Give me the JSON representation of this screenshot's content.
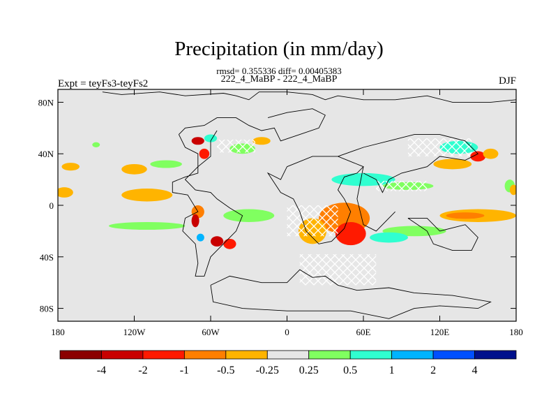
{
  "chart_data": {
    "type": "heatmap",
    "title": "Precipitation (in mm/day)",
    "stats_line": "rmsd= 0.355336 diff= 0.00405383",
    "case_line": "222_4_MaBP - 222_4_MaBP",
    "left_label": "Expt = teyFs3-teyFs2",
    "right_label": "DJF",
    "xlim": [
      -180,
      180
    ],
    "ylim": [
      -90,
      90
    ],
    "x_ticks": [
      {
        "value": -180,
        "label": "180"
      },
      {
        "value": -120,
        "label": "120W"
      },
      {
        "value": -60,
        "label": "60W"
      },
      {
        "value": 0,
        "label": "0"
      },
      {
        "value": 60,
        "label": "60E"
      },
      {
        "value": 120,
        "label": "120E"
      },
      {
        "value": 180,
        "label": "180"
      }
    ],
    "y_ticks": [
      {
        "value": 80,
        "label": "80N"
      },
      {
        "value": 40,
        "label": "40N"
      },
      {
        "value": 0,
        "label": "0"
      },
      {
        "value": -40,
        "label": "40S"
      },
      {
        "value": -80,
        "label": "80S"
      }
    ],
    "colorbar": {
      "colors": [
        "#8b0000",
        "#c90000",
        "#ff1a00",
        "#ff7f00",
        "#ffb400",
        "#e6e6e6",
        "#80ff60",
        "#30ffd0",
        "#00b4ff",
        "#0050ff",
        "#00108c"
      ],
      "labels": [
        "-4",
        "-2",
        "-1",
        "-0.5",
        "-0.25",
        "0.25",
        "0.5",
        "1",
        "2",
        "4"
      ]
    },
    "background_color": "#e6e6e6",
    "anomalies": [
      {
        "lon": -175,
        "lat": 10,
        "w": 14,
        "h": 8,
        "level": -0.3
      },
      {
        "lon": -110,
        "lat": 8,
        "w": 40,
        "h": 10,
        "level": -0.3
      },
      {
        "lon": -120,
        "lat": 28,
        "w": 20,
        "h": 8,
        "level": -0.4
      },
      {
        "lon": -170,
        "lat": 30,
        "w": 14,
        "h": 6,
        "level": -0.3
      },
      {
        "lon": -110,
        "lat": -16,
        "w": 60,
        "h": 6,
        "level": 0.3
      },
      {
        "lon": -30,
        "lat": -8,
        "w": 40,
        "h": 10,
        "level": 0.3
      },
      {
        "lon": 150,
        "lat": -8,
        "w": 60,
        "h": 10,
        "level": -0.4
      },
      {
        "lon": 140,
        "lat": -8,
        "w": 30,
        "h": 5,
        "level": -0.8
      },
      {
        "lon": 45,
        "lat": -10,
        "w": 40,
        "h": 24,
        "level": -0.6
      },
      {
        "lon": 50,
        "lat": -22,
        "w": 24,
        "h": 18,
        "level": -1.5
      },
      {
        "lon": 20,
        "lat": -20,
        "w": 22,
        "h": 20,
        "level": -0.4
      },
      {
        "lon": 100,
        "lat": -20,
        "w": 50,
        "h": 8,
        "level": 0.3
      },
      {
        "lon": 80,
        "lat": -25,
        "w": 30,
        "h": 8,
        "level": 0.6
      },
      {
        "lon": 60,
        "lat": 20,
        "w": 50,
        "h": 10,
        "level": 0.6
      },
      {
        "lon": 95,
        "lat": 15,
        "w": 40,
        "h": 6,
        "level": 0.3
      },
      {
        "lon": 130,
        "lat": 32,
        "w": 30,
        "h": 8,
        "level": -0.3
      },
      {
        "lon": 135,
        "lat": 45,
        "w": 30,
        "h": 10,
        "level": 0.6
      },
      {
        "lon": 150,
        "lat": 38,
        "w": 12,
        "h": 8,
        "level": -1.5
      },
      {
        "lon": -70,
        "lat": -5,
        "w": 10,
        "h": 10,
        "level": -0.6
      },
      {
        "lon": -72,
        "lat": -12,
        "w": 6,
        "h": 10,
        "level": -2.5
      },
      {
        "lon": -55,
        "lat": -28,
        "w": 10,
        "h": 8,
        "level": -2.5
      },
      {
        "lon": -45,
        "lat": -30,
        "w": 10,
        "h": 8,
        "level": -1.5
      },
      {
        "lon": -68,
        "lat": -25,
        "w": 6,
        "h": 6,
        "level": 1.2
      },
      {
        "lon": -70,
        "lat": 50,
        "w": 10,
        "h": 6,
        "level": -2.5
      },
      {
        "lon": -65,
        "lat": 40,
        "w": 8,
        "h": 8,
        "level": -1.5
      },
      {
        "lon": -60,
        "lat": 52,
        "w": 10,
        "h": 6,
        "level": 0.8
      },
      {
        "lon": -35,
        "lat": 44,
        "w": 20,
        "h": 8,
        "level": 0.3
      },
      {
        "lon": -150,
        "lat": 47,
        "w": 6,
        "h": 4,
        "level": 0.3
      },
      {
        "lon": -95,
        "lat": 32,
        "w": 25,
        "h": 6,
        "level": 0.3
      },
      {
        "lon": 160,
        "lat": 40,
        "w": 12,
        "h": 8,
        "level": -0.4
      },
      {
        "lon": 175,
        "lat": 15,
        "w": 8,
        "h": 10,
        "level": 0.3
      },
      {
        "lon": 178,
        "lat": 12,
        "w": 6,
        "h": 8,
        "level": -0.3
      },
      {
        "lon": -20,
        "lat": 50,
        "w": 14,
        "h": 6,
        "level": -0.4
      }
    ],
    "hatch_boxes": [
      {
        "lon": 20,
        "lat": -12,
        "w": 40,
        "h": 24
      },
      {
        "lon": 40,
        "lat": -50,
        "w": 60,
        "h": 24
      },
      {
        "lon": 120,
        "lat": 45,
        "w": 50,
        "h": 14
      },
      {
        "lon": -40,
        "lat": 46,
        "w": 30,
        "h": 10
      },
      {
        "lon": 90,
        "lat": 15,
        "w": 40,
        "h": 8
      }
    ],
    "coast_paths": [
      [
        [
          -145,
          88
        ],
        [
          -130,
          86
        ],
        [
          -100,
          88
        ],
        [
          -80,
          85
        ],
        [
          -50,
          87
        ],
        [
          -40,
          85
        ],
        [
          -30,
          82
        ],
        [
          -22,
          88
        ],
        [
          0,
          88
        ],
        [
          20,
          86
        ],
        [
          30,
          82
        ],
        [
          40,
          85
        ],
        [
          60,
          82
        ],
        [
          85,
          82
        ],
        [
          110,
          85
        ],
        [
          130,
          80
        ],
        [
          160,
          80
        ],
        [
          180,
          82
        ]
      ],
      [
        [
          -85,
          55
        ],
        [
          -80,
          60
        ],
        [
          -65,
          62
        ],
        [
          -55,
          68
        ],
        [
          -40,
          68
        ],
        [
          -30,
          62
        ],
        [
          -20,
          58
        ],
        [
          -10,
          60
        ],
        [
          -5,
          50
        ],
        [
          10,
          55
        ],
        [
          25,
          60
        ],
        [
          30,
          70
        ],
        [
          20,
          75
        ],
        [
          0,
          72
        ],
        [
          -15,
          68
        ]
      ],
      [
        [
          -85,
          55
        ],
        [
          -80,
          45
        ],
        [
          -70,
          40
        ],
        [
          -70,
          25
        ],
        [
          -80,
          22
        ],
        [
          -90,
          18
        ],
        [
          -90,
          10
        ],
        [
          -78,
          8
        ],
        [
          -70,
          -5
        ],
        [
          -80,
          -10
        ],
        [
          -82,
          -20
        ],
        [
          -72,
          -30
        ],
        [
          -70,
          -45
        ],
        [
          -72,
          -55
        ],
        [
          -65,
          -55
        ],
        [
          -60,
          -40
        ],
        [
          -55,
          -35
        ],
        [
          -45,
          -25
        ],
        [
          -40,
          -20
        ],
        [
          -35,
          -8
        ],
        [
          -45,
          -2
        ],
        [
          -55,
          5
        ],
        [
          -60,
          10
        ],
        [
          -72,
          12
        ],
        [
          -80,
          20
        ],
        [
          -70,
          30
        ],
        [
          -60,
          38
        ],
        [
          -60,
          50
        ],
        [
          -55,
          58
        ]
      ],
      [
        [
          -60,
          -62
        ],
        [
          -58,
          -75
        ],
        [
          -35,
          -80
        ],
        [
          0,
          -82
        ],
        [
          50,
          -82
        ],
        [
          80,
          -88
        ],
        [
          100,
          -80
        ],
        [
          120,
          -78
        ],
        [
          150,
          -80
        ],
        [
          160,
          -75
        ],
        [
          130,
          -70
        ],
        [
          100,
          -68
        ],
        [
          80,
          -64
        ],
        [
          55,
          -66
        ],
        [
          40,
          -62
        ],
        [
          30,
          -55
        ],
        [
          20,
          -56
        ],
        [
          10,
          -50
        ],
        [
          0,
          -60
        ],
        [
          -20,
          -60
        ],
        [
          -45,
          -55
        ],
        [
          -60,
          -62
        ]
      ],
      [
        [
          0,
          30
        ],
        [
          -5,
          20
        ],
        [
          -15,
          25
        ],
        [
          -5,
          10
        ],
        [
          5,
          5
        ],
        [
          10,
          -5
        ],
        [
          15,
          -20
        ],
        [
          25,
          -30
        ],
        [
          35,
          -28
        ],
        [
          45,
          -18
        ],
        [
          50,
          -5
        ],
        [
          45,
          5
        ],
        [
          40,
          12
        ],
        [
          45,
          22
        ],
        [
          55,
          25
        ],
        [
          60,
          30
        ],
        [
          40,
          38
        ],
        [
          20,
          38
        ],
        [
          0,
          30
        ]
      ],
      [
        [
          40,
          38
        ],
        [
          60,
          45
        ],
        [
          80,
          50
        ],
        [
          100,
          55
        ],
        [
          120,
          55
        ],
        [
          140,
          50
        ],
        [
          150,
          40
        ],
        [
          140,
          35
        ],
        [
          120,
          38
        ],
        [
          110,
          30
        ],
        [
          90,
          25
        ],
        [
          80,
          20
        ],
        [
          75,
          10
        ],
        [
          70,
          20
        ],
        [
          60,
          25
        ]
      ],
      [
        [
          95,
          -10
        ],
        [
          110,
          -10
        ],
        [
          120,
          -20
        ],
        [
          140,
          -15
        ],
        [
          150,
          -25
        ],
        [
          145,
          -35
        ],
        [
          130,
          -35
        ],
        [
          115,
          -30
        ],
        [
          110,
          -20
        ],
        [
          95,
          -10
        ]
      ],
      [
        [
          60,
          30
        ],
        [
          55,
          5
        ],
        [
          60,
          -15
        ],
        [
          70,
          -20
        ],
        [
          80,
          -10
        ],
        [
          85,
          -5
        ]
      ]
    ]
  }
}
